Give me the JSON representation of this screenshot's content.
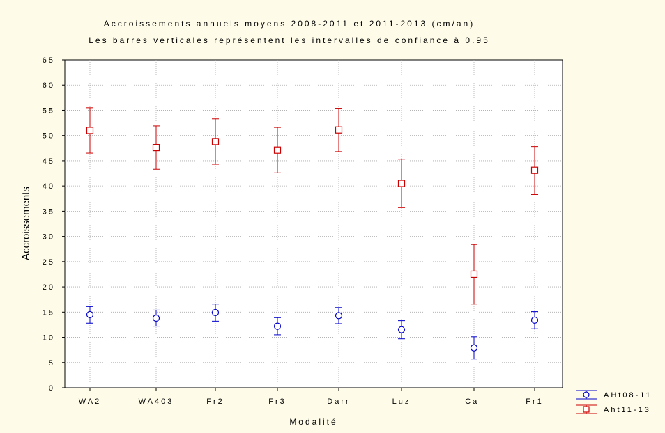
{
  "chart_data": {
    "type": "scatter",
    "title": "Accroissements annuels moyens 2008-2011 et 2011-2013 (cm/an)",
    "subtitle": "Les barres verticales représentent les intervalles de confiance à 0.95",
    "xlabel": "Modalité",
    "ylabel": "Accroissements",
    "categories": [
      "WA2",
      "WA403",
      "Fr2",
      "Fr3",
      "Darr",
      "Luz",
      "Cal",
      "Fr1"
    ],
    "ylim": [
      0,
      65
    ],
    "yticks": [
      0,
      5,
      10,
      15,
      20,
      25,
      30,
      35,
      40,
      45,
      50,
      55,
      60,
      65
    ],
    "grid": true,
    "legend_position": "bottom-right",
    "series": [
      {
        "name": "AHt08-11",
        "color": "#0000cc",
        "marker": "circle",
        "values": [
          14.5,
          13.8,
          14.9,
          12.2,
          14.3,
          11.5,
          7.9,
          13.4
        ],
        "ci_low": [
          12.8,
          12.2,
          13.2,
          10.5,
          12.7,
          9.7,
          5.7,
          11.7
        ],
        "ci_high": [
          16.1,
          15.4,
          16.6,
          13.9,
          15.9,
          13.3,
          10.1,
          15.1
        ]
      },
      {
        "name": "Aht11-13",
        "color": "#cc0000",
        "marker": "square",
        "values": [
          51.0,
          47.6,
          48.8,
          47.1,
          51.1,
          40.5,
          22.5,
          43.1
        ],
        "ci_low": [
          46.5,
          43.3,
          44.3,
          42.6,
          46.8,
          35.7,
          16.6,
          38.3
        ],
        "ci_high": [
          55.5,
          51.9,
          53.3,
          51.6,
          55.4,
          45.3,
          28.4,
          47.8
        ]
      }
    ]
  }
}
